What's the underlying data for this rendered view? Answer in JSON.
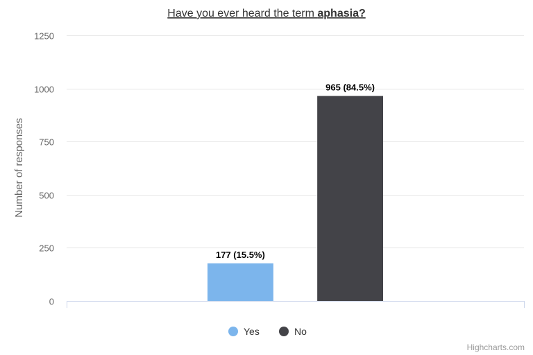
{
  "chart_data": {
    "type": "bar",
    "title_prefix": "Have you ever heard the term ",
    "title_bold": "aphasia?",
    "ylabel": "Number of responses",
    "ylim": [
      0,
      1250
    ],
    "yticks": [
      0,
      250,
      500,
      750,
      1000,
      1250
    ],
    "grid": true,
    "legend_position": "bottom-center",
    "series": [
      {
        "name": "Yes",
        "value": 177,
        "label": "177 (15.5%)",
        "color": "#7cb5ec"
      },
      {
        "name": "No",
        "value": 965,
        "label": "965 (84.5%)",
        "color": "#434348"
      }
    ]
  },
  "credits": "Highcharts.com"
}
